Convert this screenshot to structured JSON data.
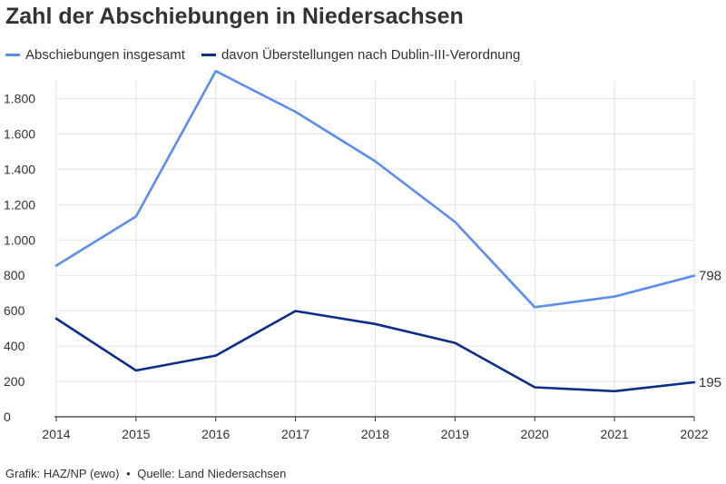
{
  "title": "Zahl der Abschiebungen in Niedersachsen",
  "footer": {
    "credit": "Grafik: HAZ/NP (ewo)",
    "separator": "•",
    "source": "Quelle: Land Niedersachsen"
  },
  "colors": {
    "series_total": "#5b8def",
    "series_dublin": "#0b2e8a",
    "grid": "#e3e3e3",
    "axis": "#333333"
  },
  "chart_data": {
    "type": "line",
    "x": [
      "2014",
      "2015",
      "2016",
      "2017",
      "2018",
      "2019",
      "2020",
      "2021",
      "2022"
    ],
    "series": [
      {
        "name": "Abschiebungen insgesamt",
        "values": [
          855,
          1133,
          1955,
          1725,
          1445,
          1102,
          620,
          680,
          798
        ],
        "end_label": "798"
      },
      {
        "name": "davon Überstellungen nach Dublin-III-Verordnung",
        "values": [
          555,
          262,
          346,
          598,
          525,
          418,
          167,
          145,
          195
        ],
        "end_label": "195"
      }
    ],
    "ylim": [
      0,
      1900
    ],
    "yticks": [
      0,
      200,
      400,
      600,
      800,
      1000,
      1200,
      1400,
      1600,
      1800
    ],
    "ytick_labels": [
      "0",
      "200",
      "400",
      "600",
      "800",
      "1.000",
      "1.200",
      "1.400",
      "1.600",
      "1.800"
    ],
    "grid": true,
    "legend_position": "top-left"
  }
}
